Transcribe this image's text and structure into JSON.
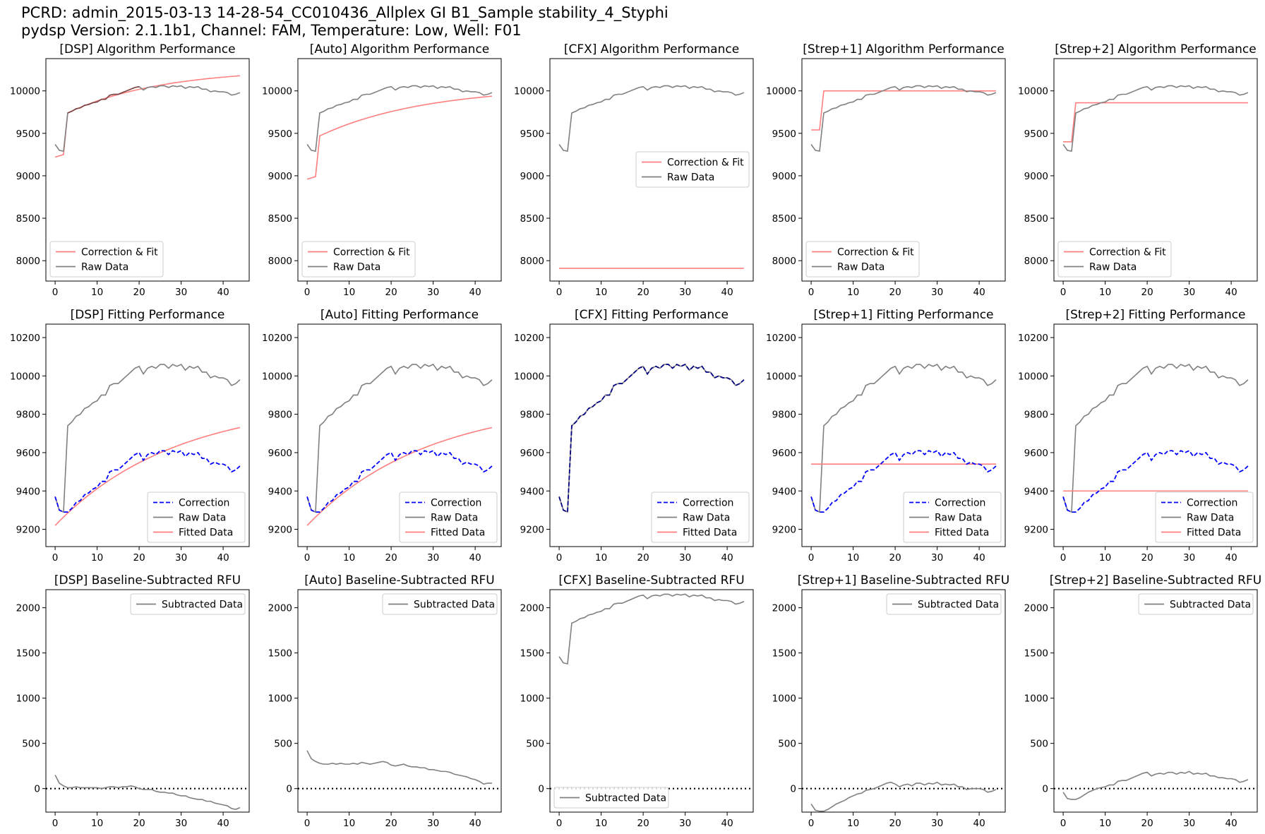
{
  "header": {
    "line1": "PCRD: admin_2015-03-13 14-28-54_CC010436_Allplex GI B1_Sample stability_4_Styphi",
    "line2": "pydsp Version: 2.1.1b1, Channel: FAM, Temperature: Low, Well: F01"
  },
  "colors": {
    "raw": "#808080",
    "fit": "#ff7f7f",
    "correction": "#0000ff",
    "zero": "#000000",
    "dsp_overlap": "#803f3f",
    "cfx_overlap": "#000080"
  },
  "chart_data": {
    "type": "line",
    "layout": "3x5 grid",
    "methods": [
      "DSP",
      "Auto",
      "CFX",
      "Strep+1",
      "Strep+2"
    ],
    "cycles_range": [
      0,
      44
    ],
    "raw_data": [
      9370,
      9300,
      9290,
      9740,
      9760,
      9790,
      9800,
      9830,
      9840,
      9860,
      9870,
      9900,
      9900,
      9950,
      9960,
      9960,
      9980,
      10000,
      10020,
      10040,
      10050,
      10010,
      10040,
      10050,
      10040,
      10060,
      10060,
      10040,
      10060,
      10050,
      10060,
      10030,
      10050,
      10040,
      10050,
      10020,
      10020,
      9990,
      10000,
      9990,
      9990,
      9980,
      9950,
      9960,
      9980
    ],
    "rows": [
      {
        "kind": "algorithm",
        "title_suffix": "Algorithm Performance",
        "ylim": [
          7760,
          10380
        ],
        "yticks": [
          8000,
          8500,
          9000,
          9500,
          10000
        ],
        "legend_labels": [
          "Correction & Fit",
          "Raw Data"
        ],
        "panels": [
          {
            "title": "[DSP] Algorithm Performance",
            "legend": "lower-left",
            "correction_fit": {
              "baseline": [
                9220,
                9250
              ],
              "fit_start": 3,
              "fit": {
                "form": "exp",
                "y0": 9740,
                "ymax": 10260,
                "k": 0.045
              }
            }
          },
          {
            "title": "[Auto] Algorithm Performance",
            "legend": "lower-left",
            "correction_fit": {
              "baseline": [
                8960,
                8990
              ],
              "fit_start": 3,
              "fit": {
                "form": "exp",
                "y0": 9470,
                "ymax": 10050,
                "k": 0.04
              }
            }
          },
          {
            "title": "[CFX] Algorithm Performance",
            "legend": "center-right",
            "correction_fit": {
              "constant": 7910
            }
          },
          {
            "title": "[Strep+1] Algorithm Performance",
            "legend": "lower-left",
            "correction_fit": {
              "baseline": [
                9540,
                9540
              ],
              "fit_start": 3,
              "plateau": 10000
            }
          },
          {
            "title": "[Strep+2] Algorithm Performance",
            "legend": "lower-left",
            "correction_fit": {
              "baseline": [
                9400,
                9400
              ],
              "fit_start": 3,
              "plateau": 9860
            }
          }
        ]
      },
      {
        "kind": "fitting",
        "title_suffix": "Fitting Performance",
        "ylim": [
          9110,
          10270
        ],
        "yticks": [
          9200,
          9400,
          9600,
          9800,
          10000,
          10200
        ],
        "legend_labels": [
          "Correction",
          "Raw Data",
          "Fitted Data"
        ],
        "panels": [
          {
            "title": "[DSP] Fitting Performance",
            "legend": "lower-right",
            "correction_offset": -450,
            "fitted": {
              "form": "exp",
              "y0": 9220,
              "ymax": 9870,
              "k": 0.035
            }
          },
          {
            "title": "[Auto] Fitting Performance",
            "legend": "lower-right",
            "correction_offset": -450,
            "fitted": {
              "form": "exp",
              "y0": 9220,
              "ymax": 9870,
              "k": 0.035
            }
          },
          {
            "title": "[CFX] Fitting Performance",
            "legend": "lower-right",
            "correction_offset": 0,
            "fitted_hidden": true
          },
          {
            "title": "[Strep+1] Fitting Performance",
            "legend": "lower-right",
            "correction_offset": -450,
            "fitted": {
              "form": "constant",
              "value": 9540
            }
          },
          {
            "title": "[Strep+2] Fitting Performance",
            "legend": "lower-right",
            "correction_offset": -450,
            "fitted": {
              "form": "constant",
              "value": 9400
            }
          }
        ]
      },
      {
        "kind": "subtracted",
        "title_suffix": "Baseline-Subtracted RFU",
        "ylim": [
          -260,
          2200
        ],
        "yticks": [
          0,
          500,
          1000,
          1500,
          2000
        ],
        "legend_labels": [
          "Subtracted Data"
        ],
        "zero_line": 0,
        "panels": [
          {
            "title": "[DSP] Baseline-Subtracted RFU",
            "legend": "upper-right",
            "values": [
              150,
              60,
              30,
              10,
              10,
              20,
              10,
              10,
              10,
              10,
              10,
              0,
              10,
              20,
              20,
              10,
              20,
              20,
              30,
              20,
              0,
              -10,
              -10,
              -10,
              -30,
              -40,
              -40,
              -50,
              -50,
              -70,
              -80,
              -80,
              -100,
              -110,
              -120,
              -120,
              -140,
              -140,
              -160,
              -170,
              -180,
              -190,
              -220,
              -230,
              -210
            ]
          },
          {
            "title": "[Auto] Baseline-Subtracted RFU",
            "legend": "upper-right",
            "values": [
              420,
              330,
              300,
              280,
              270,
              270,
              280,
              270,
              280,
              270,
              270,
              280,
              270,
              290,
              280,
              270,
              280,
              290,
              300,
              290,
              260,
              250,
              260,
              270,
              250,
              240,
              240,
              230,
              230,
              210,
              210,
              200,
              190,
              190,
              180,
              160,
              150,
              140,
              130,
              110,
              100,
              80,
              50,
              60,
              60
            ]
          },
          {
            "title": "[CFX] Baseline-Subtracted RFU",
            "legend": "lower-left",
            "values": [
              1460,
              1390,
              1380,
              1830,
              1850,
              1880,
              1890,
              1920,
              1930,
              1950,
              1960,
              1990,
              1990,
              2040,
              2050,
              2050,
              2070,
              2090,
              2110,
              2130,
              2140,
              2100,
              2130,
              2140,
              2130,
              2150,
              2150,
              2130,
              2150,
              2140,
              2150,
              2120,
              2140,
              2130,
              2140,
              2110,
              2110,
              2080,
              2090,
              2080,
              2080,
              2070,
              2040,
              2050,
              2070
            ]
          },
          {
            "title": "[Strep+1] Baseline-Subtracted RFU",
            "legend": "upper-right",
            "values": [
              -170,
              -240,
              -250,
              -250,
              -230,
              -200,
              -170,
              -150,
              -130,
              -100,
              -80,
              -60,
              -50,
              -20,
              -10,
              0,
              20,
              40,
              60,
              70,
              50,
              20,
              40,
              50,
              30,
              60,
              60,
              40,
              60,
              50,
              70,
              40,
              50,
              40,
              50,
              20,
              20,
              -10,
              0,
              0,
              0,
              -10,
              -40,
              -30,
              -10
            ]
          },
          {
            "title": "[Strep+2] Baseline-Subtracted RFU",
            "legend": "upper-right",
            "values": [
              -40,
              -110,
              -120,
              -120,
              -100,
              -70,
              -40,
              -20,
              0,
              10,
              20,
              40,
              40,
              80,
              90,
              90,
              110,
              130,
              150,
              170,
              180,
              140,
              160,
              170,
              160,
              180,
              180,
              160,
              180,
              170,
              190,
              160,
              170,
              160,
              170,
              140,
              140,
              120,
              120,
              110,
              110,
              100,
              70,
              80,
              100
            ]
          }
        ]
      }
    ],
    "xticks": [
      0,
      10,
      20,
      30,
      40
    ]
  }
}
